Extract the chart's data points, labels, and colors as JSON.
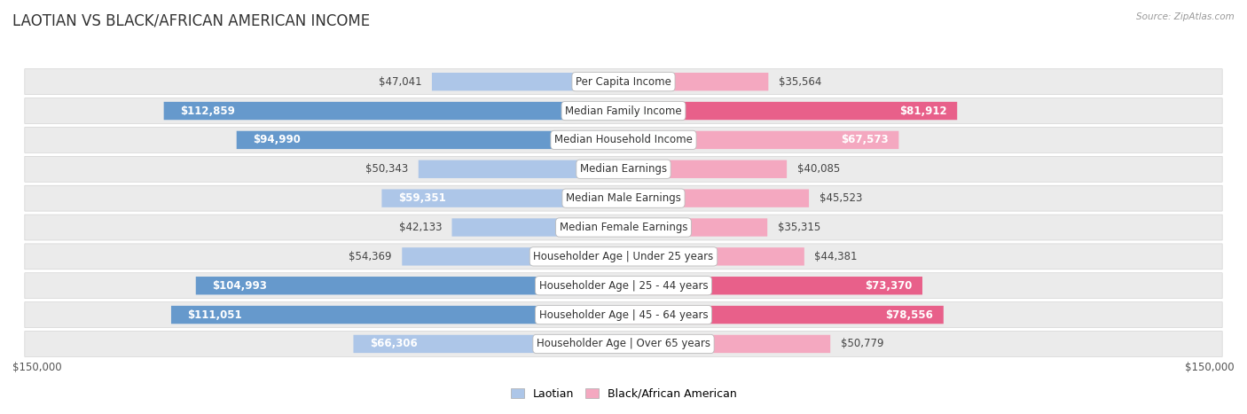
{
  "title": "LAOTIAN VS BLACK/AFRICAN AMERICAN INCOME",
  "source": "Source: ZipAtlas.com",
  "categories": [
    "Per Capita Income",
    "Median Family Income",
    "Median Household Income",
    "Median Earnings",
    "Median Male Earnings",
    "Median Female Earnings",
    "Householder Age | Under 25 years",
    "Householder Age | 25 - 44 years",
    "Householder Age | 45 - 64 years",
    "Householder Age | Over 65 years"
  ],
  "laotian_values": [
    47041,
    112859,
    94990,
    50343,
    59351,
    42133,
    54369,
    104993,
    111051,
    66306
  ],
  "black_values": [
    35564,
    81912,
    67573,
    40085,
    45523,
    35315,
    44381,
    73370,
    78556,
    50779
  ],
  "laotian_labels": [
    "$47,041",
    "$112,859",
    "$94,990",
    "$50,343",
    "$59,351",
    "$42,133",
    "$54,369",
    "$104,993",
    "$111,051",
    "$66,306"
  ],
  "black_labels": [
    "$35,564",
    "$81,912",
    "$67,573",
    "$40,085",
    "$45,523",
    "$35,315",
    "$44,381",
    "$73,370",
    "$78,556",
    "$50,779"
  ],
  "max_value": 150000,
  "laotian_color_light": "#adc6e8",
  "laotian_color_dark": "#6699cc",
  "black_color_light": "#f4a8c0",
  "black_color_dark": "#e8608a",
  "row_bg": "#ebebeb",
  "bar_height": 0.62,
  "label_fontsize": 8.5,
  "title_fontsize": 12,
  "legend_fontsize": 9,
  "laotian_inside_threshold": 70000,
  "black_inside_threshold": 70000
}
